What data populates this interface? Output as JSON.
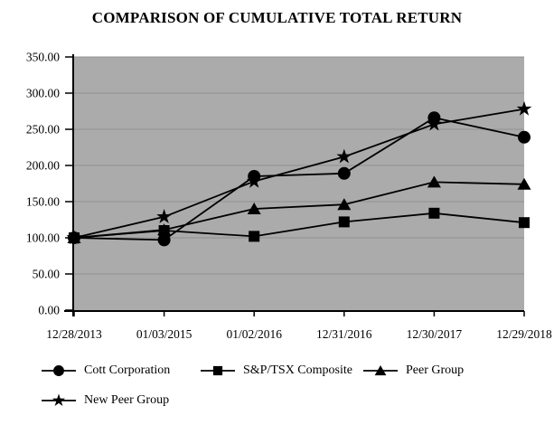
{
  "title": "COMPARISON OF CUMULATIVE TOTAL RETURN",
  "chart_data": {
    "type": "line",
    "title": "COMPARISON OF CUMULATIVE TOTAL RETURN",
    "categories": [
      "12/28/2013",
      "01/03/2015",
      "01/02/2016",
      "12/31/2016",
      "12/30/2017",
      "12/29/2018"
    ],
    "series": [
      {
        "name": "Cott Corporation",
        "marker": "circle",
        "values": [
          100.0,
          97,
          185,
          189,
          266,
          239
        ]
      },
      {
        "name": "S&P/TSX Composite",
        "marker": "square",
        "values": [
          100.0,
          110,
          102,
          122,
          134,
          121
        ]
      },
      {
        "name": "Peer Group",
        "marker": "triangle",
        "values": [
          100.0,
          111,
          140,
          146,
          177,
          174
        ]
      },
      {
        "name": "New Peer Group",
        "marker": "star",
        "values": [
          100.0,
          129,
          178,
          212,
          257,
          278
        ]
      }
    ],
    "ylim": [
      0,
      350
    ],
    "ytick_step": 50,
    "ytick_labels": [
      "0.00",
      "50.00",
      "100.00",
      "150.00",
      "200.00",
      "250.00",
      "300.00",
      "350.00"
    ],
    "xlabel": "",
    "ylabel": "",
    "grid": true,
    "legend_position": "bottom",
    "colors": {
      "line": "#000000",
      "plot_background": "#ababab",
      "gridline": "#929292",
      "axis": "#000000",
      "text": "#000000"
    },
    "z_order": [
      3,
      2,
      0,
      1
    ]
  }
}
